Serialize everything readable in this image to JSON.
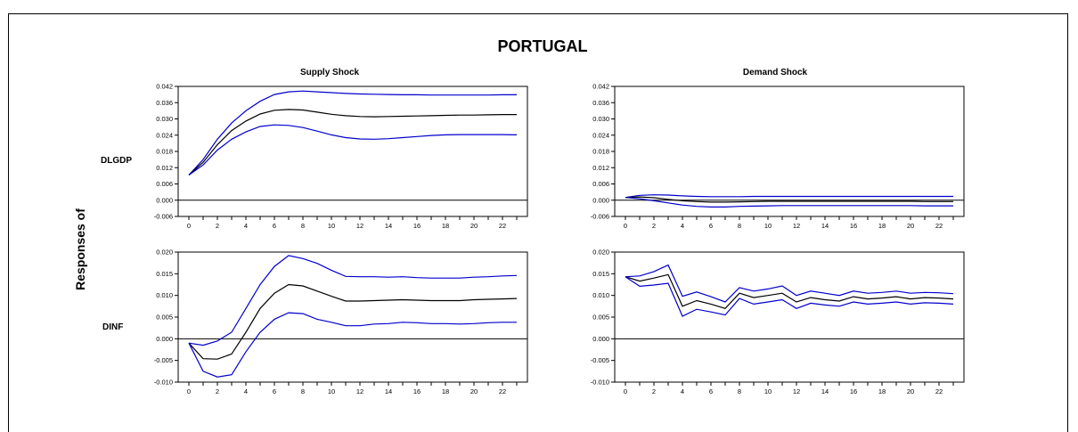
{
  "figure": {
    "title": "PORTUGAL",
    "y_label": "Responses of",
    "columns": [
      "Supply Shock",
      "Demand Shock"
    ],
    "rows": [
      "DLGDP",
      "DINF"
    ]
  },
  "colors": {
    "point": "#000000",
    "band": "#0000cc",
    "axis": "#000000"
  },
  "chart_data": [
    {
      "type": "line",
      "title": "Supply Shock",
      "ylabel": "DLGDP",
      "x": [
        0,
        1,
        2,
        3,
        4,
        5,
        6,
        7,
        8,
        9,
        10,
        11,
        12,
        13,
        14,
        15,
        16,
        17,
        18,
        19,
        20,
        21,
        22,
        23
      ],
      "xticks": [
        0,
        2,
        4,
        6,
        8,
        10,
        12,
        14,
        16,
        18,
        20,
        22
      ],
      "ylim": [
        -0.006,
        0.042
      ],
      "yticks": [
        "-0.006",
        "0.000",
        "0.006",
        "0.012",
        "0.018",
        "0.024",
        "0.030",
        "0.036",
        "0.042"
      ],
      "series": [
        {
          "role": "upper",
          "values": [
            0.0093,
            0.015,
            0.0225,
            0.0285,
            0.033,
            0.0365,
            0.039,
            0.04,
            0.0403,
            0.04,
            0.0397,
            0.0394,
            0.0392,
            0.0391,
            0.039,
            0.0389,
            0.0389,
            0.0388,
            0.0388,
            0.0388,
            0.0388,
            0.0388,
            0.0389,
            0.0389
          ]
        },
        {
          "role": "point",
          "values": [
            0.0093,
            0.014,
            0.0205,
            0.0257,
            0.0292,
            0.0318,
            0.0332,
            0.0335,
            0.0333,
            0.0325,
            0.0317,
            0.0312,
            0.0309,
            0.0308,
            0.0309,
            0.031,
            0.0311,
            0.0312,
            0.0313,
            0.0314,
            0.0314,
            0.0315,
            0.0316,
            0.0316
          ]
        },
        {
          "role": "lower",
          "values": [
            0.0093,
            0.013,
            0.0185,
            0.0225,
            0.0252,
            0.0272,
            0.0278,
            0.0276,
            0.0268,
            0.0255,
            0.0241,
            0.0231,
            0.0226,
            0.0225,
            0.0227,
            0.0231,
            0.0235,
            0.0239,
            0.0241,
            0.0242,
            0.0242,
            0.0242,
            0.0242,
            0.0241
          ]
        }
      ]
    },
    {
      "type": "line",
      "title": "Demand Shock",
      "ylabel": "DLGDP",
      "x": [
        0,
        1,
        2,
        3,
        4,
        5,
        6,
        7,
        8,
        9,
        10,
        11,
        12,
        13,
        14,
        15,
        16,
        17,
        18,
        19,
        20,
        21,
        22,
        23
      ],
      "xticks": [
        0,
        2,
        4,
        6,
        8,
        10,
        12,
        14,
        16,
        18,
        20,
        22
      ],
      "ylim": [
        -0.006,
        0.042
      ],
      "yticks": [
        "-0.006",
        "0.000",
        "0.006",
        "0.012",
        "0.018",
        "0.024",
        "0.030",
        "0.036",
        "0.042"
      ],
      "series": [
        {
          "role": "upper",
          "values": [
            0.001,
            0.0018,
            0.002,
            0.0019,
            0.0016,
            0.0014,
            0.0013,
            0.0013,
            0.0013,
            0.0014,
            0.0014,
            0.0014,
            0.0014,
            0.0014,
            0.0014,
            0.0014,
            0.0014,
            0.0014,
            0.0014,
            0.0014,
            0.0014,
            0.0014,
            0.0014,
            0.0014
          ]
        },
        {
          "role": "point",
          "values": [
            0.001,
            0.0012,
            0.0009,
            0.0003,
            -0.0002,
            -0.0005,
            -0.0007,
            -0.0007,
            -0.0006,
            -0.0005,
            -0.0004,
            -0.0004,
            -0.0004,
            -0.0004,
            -0.0004,
            -0.0004,
            -0.0004,
            -0.0004,
            -0.0004,
            -0.0004,
            -0.0004,
            -0.0005,
            -0.0005,
            -0.0005
          ]
        },
        {
          "role": "lower",
          "values": [
            0.001,
            0.0005,
            -0.0002,
            -0.001,
            -0.0018,
            -0.0023,
            -0.0025,
            -0.0025,
            -0.0023,
            -0.0022,
            -0.0021,
            -0.002,
            -0.002,
            -0.002,
            -0.002,
            -0.002,
            -0.002,
            -0.002,
            -0.002,
            -0.002,
            -0.002,
            -0.0021,
            -0.0021,
            -0.0021
          ]
        }
      ]
    },
    {
      "type": "line",
      "title": "Supply Shock",
      "ylabel": "DINF",
      "x": [
        0,
        1,
        2,
        3,
        4,
        5,
        6,
        7,
        8,
        9,
        10,
        11,
        12,
        13,
        14,
        15,
        16,
        17,
        18,
        19,
        20,
        21,
        22,
        23
      ],
      "xticks": [
        0,
        2,
        4,
        6,
        8,
        10,
        12,
        14,
        16,
        18,
        20,
        22
      ],
      "ylim": [
        -0.01,
        0.02
      ],
      "yticks": [
        "-0.010",
        "-0.005",
        "0.000",
        "0.005",
        "0.010",
        "0.015",
        "0.020"
      ],
      "series": [
        {
          "role": "upper",
          "values": [
            -0.001,
            -0.0015,
            -0.0005,
            0.0015,
            0.007,
            0.0125,
            0.0167,
            0.0192,
            0.0185,
            0.0174,
            0.0158,
            0.0144,
            0.0143,
            0.0143,
            0.0142,
            0.0143,
            0.0141,
            0.014,
            0.014,
            0.014,
            0.0142,
            0.0143,
            0.0145,
            0.0146
          ]
        },
        {
          "role": "point",
          "values": [
            -0.001,
            -0.0046,
            -0.0047,
            -0.0035,
            0.0015,
            0.007,
            0.0105,
            0.0125,
            0.0122,
            0.011,
            0.0098,
            0.0087,
            0.0087,
            0.0088,
            0.0089,
            0.009,
            0.0089,
            0.0088,
            0.0088,
            0.0088,
            0.009,
            0.0091,
            0.0092,
            0.0093
          ]
        },
        {
          "role": "lower",
          "values": [
            -0.001,
            -0.0075,
            -0.0088,
            -0.0083,
            -0.003,
            0.0015,
            0.0045,
            0.006,
            0.0058,
            0.0045,
            0.0038,
            0.003,
            0.003,
            0.0034,
            0.0035,
            0.0038,
            0.0037,
            0.0035,
            0.0035,
            0.0034,
            0.0035,
            0.0037,
            0.0038,
            0.0038
          ]
        }
      ]
    },
    {
      "type": "line",
      "title": "Demand Shock",
      "ylabel": "DINF",
      "x": [
        0,
        1,
        2,
        3,
        4,
        5,
        6,
        7,
        8,
        9,
        10,
        11,
        12,
        13,
        14,
        15,
        16,
        17,
        18,
        19,
        20,
        21,
        22,
        23
      ],
      "xticks": [
        0,
        2,
        4,
        6,
        8,
        10,
        12,
        14,
        16,
        18,
        20,
        22
      ],
      "ylim": [
        -0.01,
        0.02
      ],
      "yticks": [
        "-0.010",
        "-0.005",
        "0.000",
        "0.005",
        "0.010",
        "0.015",
        "0.020"
      ],
      "series": [
        {
          "role": "upper",
          "values": [
            0.0143,
            0.0145,
            0.0155,
            0.017,
            0.0098,
            0.0108,
            0.0097,
            0.0085,
            0.0118,
            0.011,
            0.0115,
            0.0122,
            0.01,
            0.011,
            0.0105,
            0.01,
            0.011,
            0.0105,
            0.0107,
            0.011,
            0.0105,
            0.0107,
            0.0106,
            0.0104
          ]
        },
        {
          "role": "point",
          "values": [
            0.0143,
            0.0133,
            0.014,
            0.0148,
            0.0075,
            0.0088,
            0.008,
            0.007,
            0.0105,
            0.0095,
            0.01,
            0.0105,
            0.0085,
            0.0095,
            0.009,
            0.0087,
            0.0097,
            0.0092,
            0.0094,
            0.0097,
            0.0092,
            0.0095,
            0.0094,
            0.0092
          ]
        },
        {
          "role": "lower",
          "values": [
            0.0143,
            0.0121,
            0.0124,
            0.0128,
            0.0052,
            0.0068,
            0.0062,
            0.0055,
            0.0093,
            0.008,
            0.0085,
            0.009,
            0.007,
            0.0082,
            0.0078,
            0.0075,
            0.0085,
            0.008,
            0.0082,
            0.0085,
            0.008,
            0.0083,
            0.0082,
            0.008
          ]
        }
      ]
    }
  ]
}
